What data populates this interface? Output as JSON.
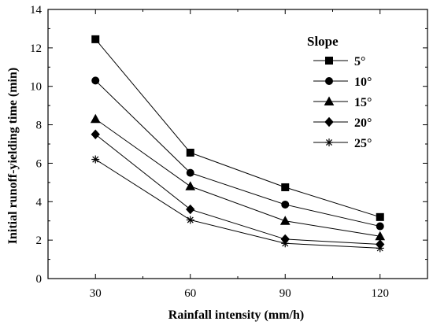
{
  "chart_data": {
    "type": "line",
    "x": [
      30,
      60,
      90,
      120
    ],
    "xlabel": "Rainfall intensity (mm/h)",
    "ylabel": "Initial runoff-yielding time (min)",
    "xticks": [
      "30",
      "60",
      "90",
      "120"
    ],
    "yticks": [
      "0",
      "2",
      "4",
      "6",
      "8",
      "10",
      "12",
      "14"
    ],
    "xlim": [
      15,
      135
    ],
    "ylim": [
      0,
      14
    ],
    "grid": false,
    "legend_title": "Slope",
    "legend_position": "top-right",
    "series": [
      {
        "name": "5°",
        "marker": "square",
        "values": [
          12.45,
          6.55,
          4.75,
          3.2
        ]
      },
      {
        "name": "10°",
        "marker": "circle",
        "values": [
          10.3,
          5.5,
          3.85,
          2.72
        ]
      },
      {
        "name": "15°",
        "marker": "triangle",
        "values": [
          8.3,
          4.8,
          3.0,
          2.2
        ]
      },
      {
        "name": "20°",
        "marker": "diamond",
        "values": [
          7.5,
          3.6,
          2.05,
          1.78
        ]
      },
      {
        "name": "25°",
        "marker": "star",
        "values": [
          6.2,
          3.05,
          1.83,
          1.58
        ]
      }
    ],
    "colors": {
      "line": "#000000",
      "marker": "#000000"
    }
  }
}
